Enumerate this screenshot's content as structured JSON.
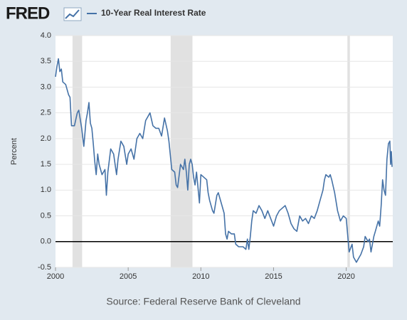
{
  "logo": "FRED",
  "chart_data": {
    "type": "line",
    "y_label": "Percent",
    "source": "Source: Federal Reserve Bank of Cleveland",
    "grid": true,
    "xlim": [
      2000,
      2023.2
    ],
    "xticks": [
      2000,
      2005,
      2010,
      2015,
      2020
    ],
    "ylim": [
      -0.5,
      4
    ],
    "yticks": [
      -0.5,
      {
        "value": 0,
        "label": "0.0"
      },
      0.5,
      {
        "value": 1,
        "label": "1.0"
      },
      1.5,
      {
        "value": 2,
        "label": "2.0"
      },
      2.5,
      {
        "value": 3,
        "label": "3.0"
      },
      3.5,
      {
        "value": 4,
        "label": "4.0"
      }
    ],
    "recessions": [
      [
        2001.17,
        2001.83
      ],
      [
        2007.92,
        2009.42
      ],
      [
        2020.08,
        2020.25
      ]
    ],
    "recession_color": "#e1e1e1",
    "zero_line_color": "#000000",
    "x": [
      2000.0,
      2000.1,
      2000.2,
      2000.3,
      2000.4,
      2000.5,
      2000.7,
      2000.9,
      2001.0,
      2001.1,
      2001.3,
      2001.5,
      2001.6,
      2001.8,
      2001.95,
      2002.1,
      2002.2,
      2002.3,
      2002.4,
      2002.5,
      2002.6,
      2002.7,
      2002.8,
      2002.9,
      2003.0,
      2003.2,
      2003.4,
      2003.5,
      2003.6,
      2003.8,
      2004.0,
      2004.2,
      2004.3,
      2004.5,
      2004.7,
      2004.9,
      2005.0,
      2005.2,
      2005.4,
      2005.6,
      2005.8,
      2006.0,
      2006.2,
      2006.4,
      2006.5,
      2006.7,
      2006.9,
      2007.1,
      2007.3,
      2007.5,
      2007.7,
      2007.8,
      2008.0,
      2008.2,
      2008.3,
      2008.4,
      2008.6,
      2008.8,
      2008.9,
      2009.0,
      2009.1,
      2009.2,
      2009.3,
      2009.4,
      2009.5,
      2009.6,
      2009.7,
      2009.9,
      2010.0,
      2010.2,
      2010.4,
      2010.5,
      2010.6,
      2010.8,
      2010.9,
      2011.1,
      2011.2,
      2011.4,
      2011.6,
      2011.7,
      2011.8,
      2011.9,
      2012.1,
      2012.3,
      2012.4,
      2012.6,
      2012.8,
      2012.9,
      2013.1,
      2013.2,
      2013.3,
      2013.4,
      2013.5,
      2013.6,
      2013.8,
      2014.0,
      2014.2,
      2014.4,
      2014.6,
      2014.8,
      2015.0,
      2015.2,
      2015.4,
      2015.6,
      2015.8,
      2016.0,
      2016.2,
      2016.4,
      2016.6,
      2016.8,
      2017.0,
      2017.2,
      2017.4,
      2017.6,
      2017.8,
      2018.0,
      2018.2,
      2018.4,
      2018.5,
      2018.6,
      2018.8,
      2018.9,
      2019.0,
      2019.2,
      2019.4,
      2019.6,
      2019.8,
      2020.0,
      2020.2,
      2020.4,
      2020.5,
      2020.7,
      2020.9,
      2021.0,
      2021.2,
      2021.3,
      2021.5,
      2021.6,
      2021.7,
      2021.9,
      2022.0,
      2022.2,
      2022.3,
      2022.4,
      2022.5,
      2022.6,
      2022.7,
      2022.8,
      2022.9,
      2023.0,
      2023.05,
      2023.1,
      2023.15
    ],
    "series": [
      {
        "name": "10-Year Real Interest Rate",
        "color": "#4572a7",
        "values": [
          3.2,
          3.4,
          3.55,
          3.3,
          3.35,
          3.1,
          3.05,
          2.85,
          2.8,
          2.25,
          2.25,
          2.5,
          2.55,
          2.2,
          1.85,
          2.35,
          2.5,
          2.7,
          2.3,
          2.2,
          1.9,
          1.55,
          1.3,
          1.7,
          1.5,
          1.3,
          1.4,
          0.9,
          1.35,
          1.8,
          1.7,
          1.3,
          1.6,
          1.95,
          1.85,
          1.5,
          1.7,
          1.8,
          1.6,
          2.0,
          2.1,
          2.0,
          2.35,
          2.45,
          2.5,
          2.25,
          2.2,
          2.2,
          2.05,
          2.4,
          2.15,
          1.95,
          1.4,
          1.35,
          1.1,
          1.05,
          1.5,
          1.4,
          1.6,
          1.35,
          1.0,
          1.5,
          1.6,
          1.5,
          1.25,
          1.1,
          1.35,
          0.75,
          1.3,
          1.25,
          1.2,
          0.95,
          0.8,
          0.6,
          0.55,
          0.9,
          0.95,
          0.75,
          0.55,
          0.15,
          0.05,
          0.2,
          0.15,
          0.15,
          -0.05,
          -0.1,
          -0.1,
          -0.1,
          -0.15,
          0.05,
          -0.15,
          0.1,
          0.4,
          0.6,
          0.55,
          0.7,
          0.6,
          0.45,
          0.6,
          0.45,
          0.3,
          0.5,
          0.6,
          0.65,
          0.7,
          0.55,
          0.35,
          0.25,
          0.2,
          0.5,
          0.4,
          0.45,
          0.35,
          0.5,
          0.45,
          0.6,
          0.8,
          1.0,
          1.2,
          1.3,
          1.25,
          1.3,
          1.2,
          0.95,
          0.6,
          0.4,
          0.5,
          0.45,
          -0.2,
          -0.05,
          -0.3,
          -0.4,
          -0.3,
          -0.25,
          -0.1,
          0.1,
          0.0,
          0.05,
          -0.2,
          0.1,
          0.2,
          0.4,
          0.3,
          0.7,
          1.2,
          1.0,
          0.9,
          1.6,
          1.9,
          1.95,
          1.5,
          1.75,
          1.45
        ]
      }
    ]
  }
}
